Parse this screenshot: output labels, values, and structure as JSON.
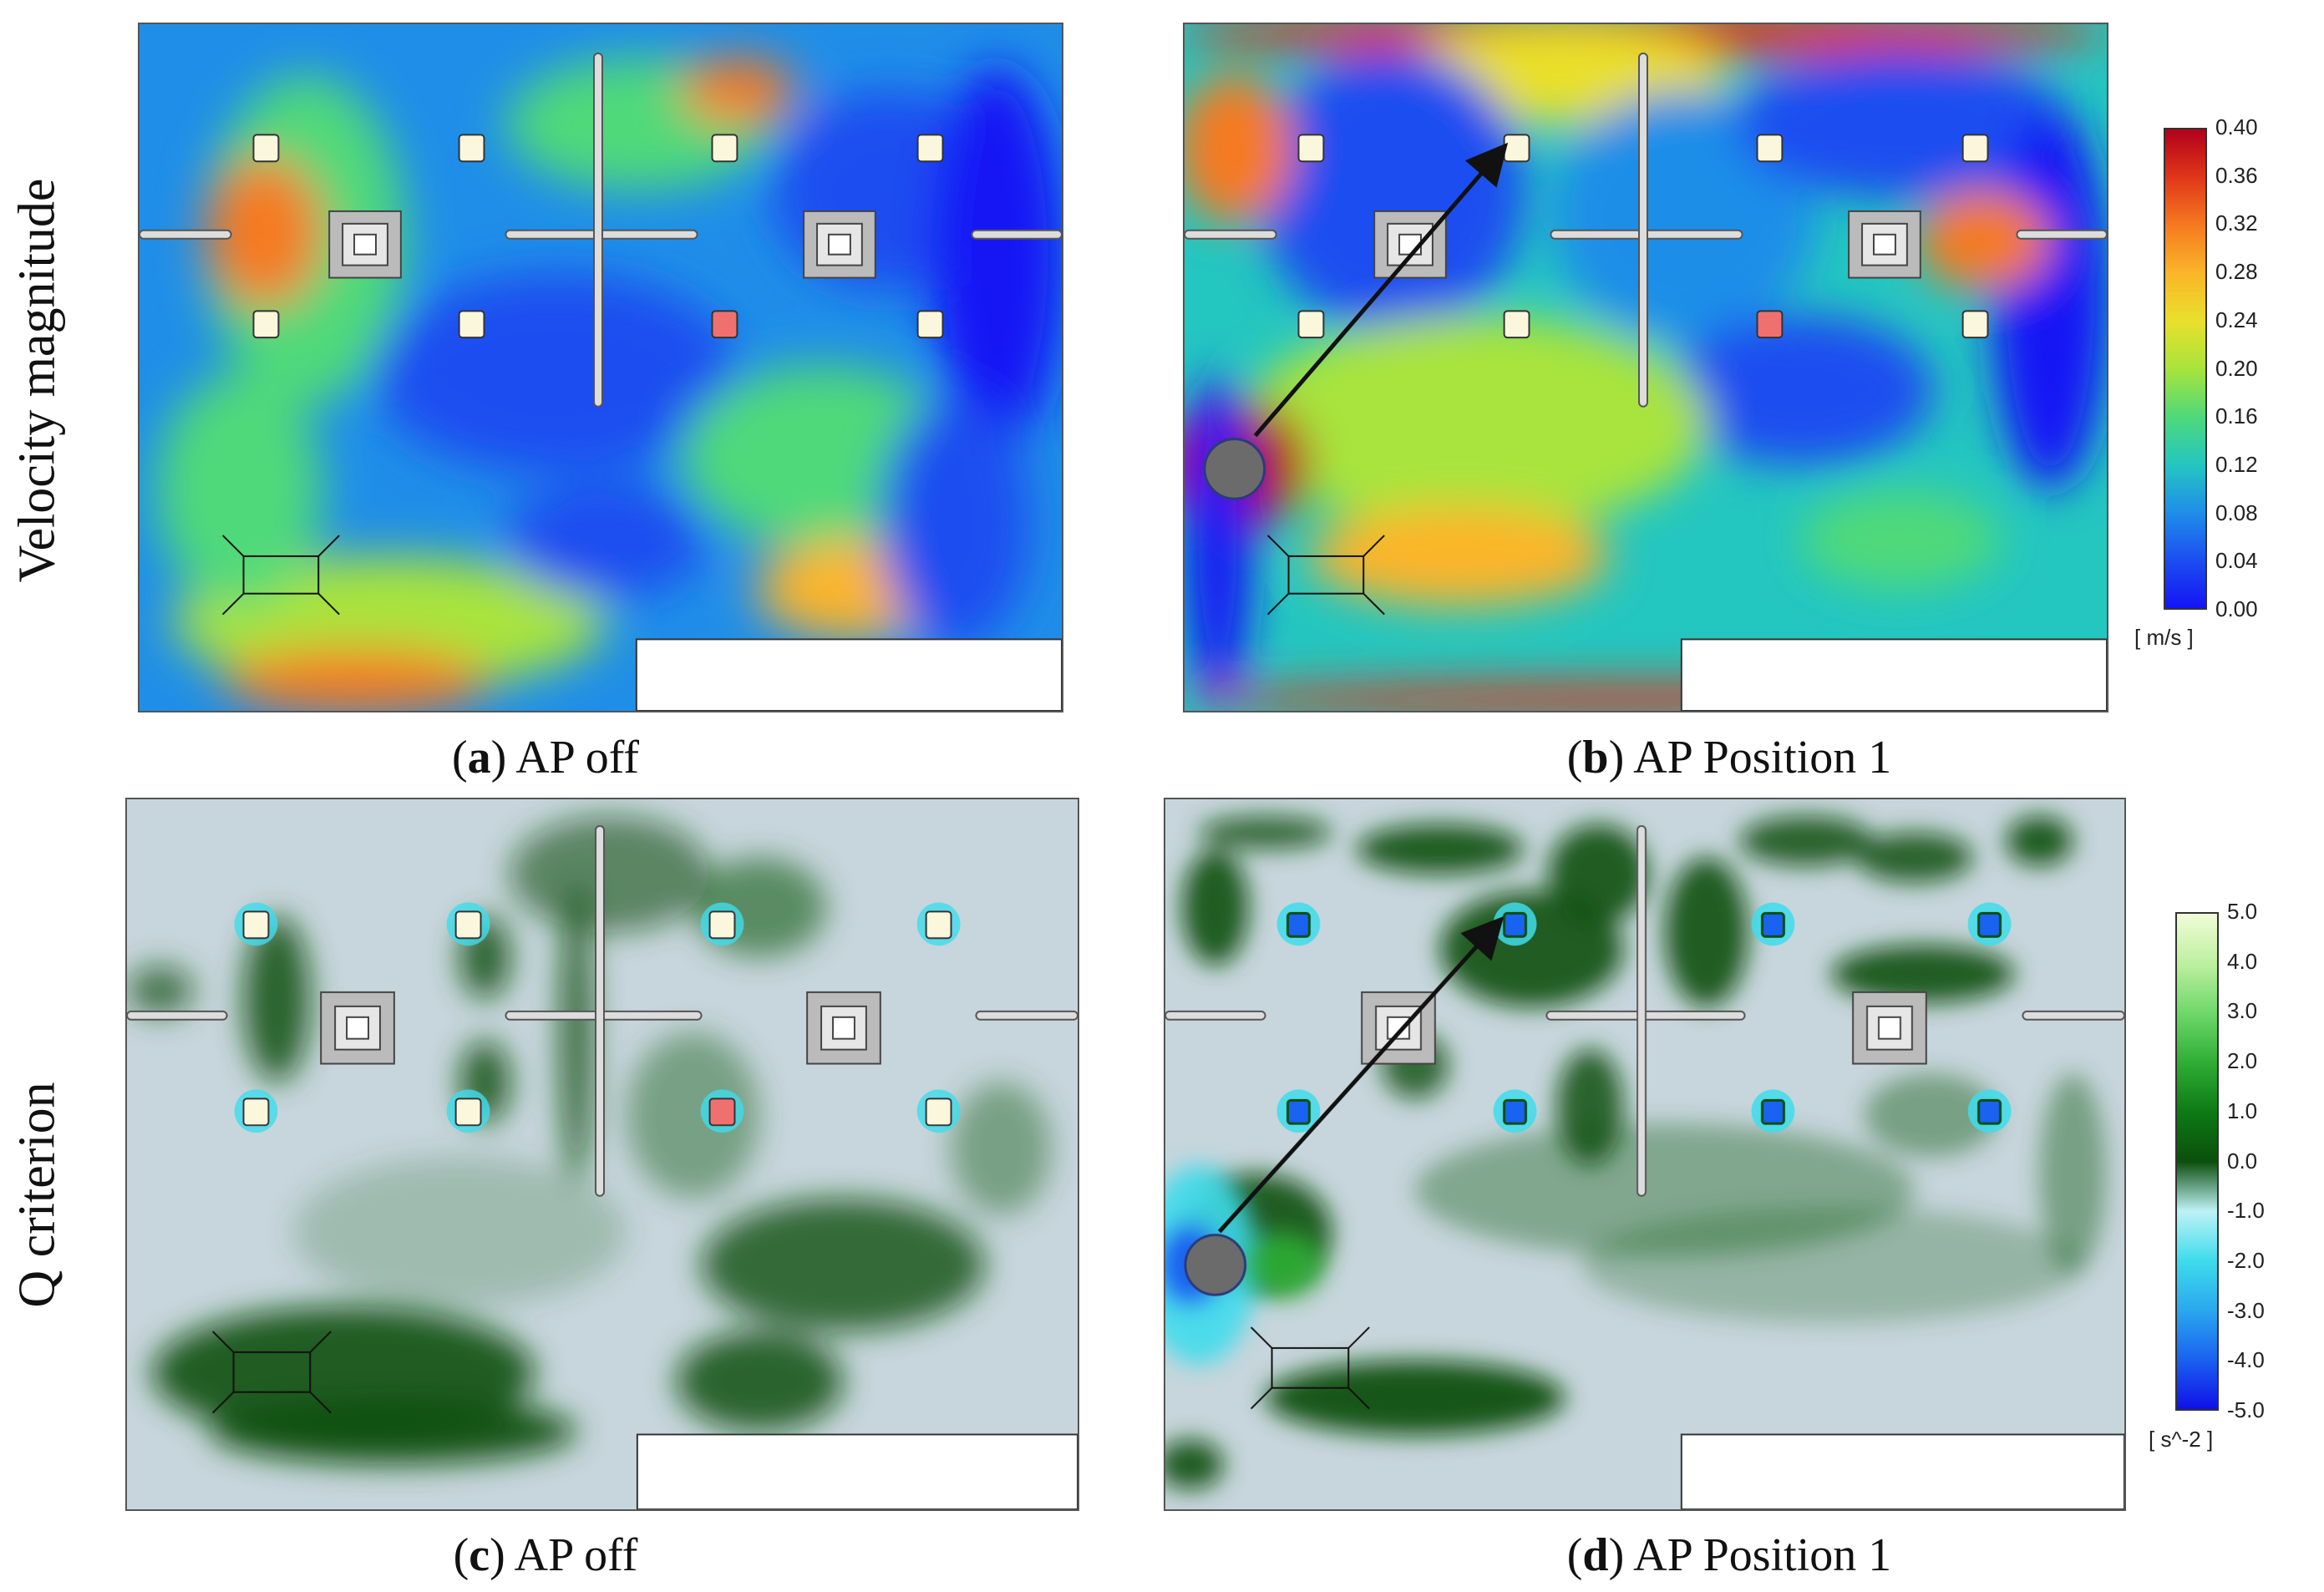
{
  "rows": {
    "top_label": "Velocity magnitude",
    "bottom_label": "Q criterion"
  },
  "panels": [
    {
      "id": "a",
      "letter": "a",
      "caption": "AP off"
    },
    {
      "id": "b",
      "letter": "b",
      "caption": "AP Position 1"
    },
    {
      "id": "c",
      "letter": "c",
      "caption": "AP off"
    },
    {
      "id": "d",
      "letter": "d",
      "caption": "AP Position 1"
    }
  ],
  "velocity_scale": {
    "unit": "[ m/s ]",
    "ticks": [
      "0.40",
      "0.36",
      "0.32",
      "0.28",
      "0.24",
      "0.20",
      "0.16",
      "0.12",
      "0.08",
      "0.04",
      "0.00"
    ],
    "colors": [
      "#b2001a",
      "#e0361a",
      "#f57a20",
      "#fbb52a",
      "#e9e02c",
      "#a8e43c",
      "#4fd97a",
      "#24c6c0",
      "#1f8ee8",
      "#1c4ef0",
      "#1414f5"
    ]
  },
  "q_scale": {
    "unit": "[ s^-2 ]",
    "ticks": [
      "5.0",
      "4.0",
      "3.0",
      "2.0",
      "1.0",
      "0.0",
      "-1.0",
      "-2.0",
      "-3.0",
      "-4.0",
      "-5.0"
    ],
    "colors": [
      "#f2fcd8",
      "#bdf0a0",
      "#6fd86a",
      "#2fae35",
      "#0d7a14",
      "#0b4f0b",
      "#bff2f6",
      "#3fdcec",
      "#2aa8ee",
      "#1a62f0",
      "#1010e8"
    ]
  }
}
